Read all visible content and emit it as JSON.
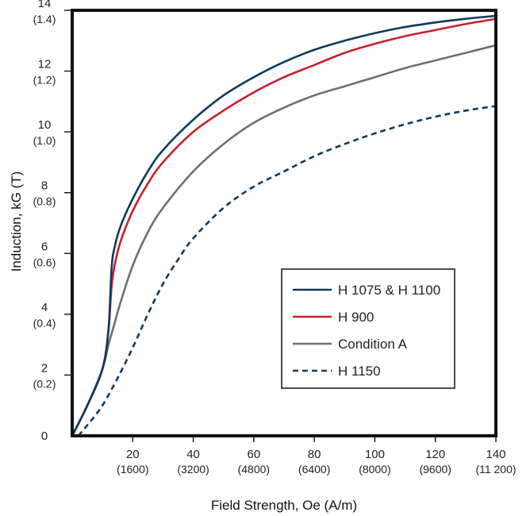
{
  "chart_data": {
    "type": "line",
    "title": "",
    "xlabel": "Field Strength, Oe (A/m)",
    "ylabel": "Induction, kG (T)",
    "xlim": [
      0,
      140
    ],
    "ylim": [
      0,
      14
    ],
    "x_ticks": [
      {
        "value": 20,
        "label": "20",
        "sublabel": "(1600)"
      },
      {
        "value": 40,
        "label": "40",
        "sublabel": "(3200)"
      },
      {
        "value": 60,
        "label": "60",
        "sublabel": "(4800)"
      },
      {
        "value": 80,
        "label": "80",
        "sublabel": "(6400)"
      },
      {
        "value": 100,
        "label": "100",
        "sublabel": "(8000)"
      },
      {
        "value": 120,
        "label": "120",
        "sublabel": "(9600)"
      },
      {
        "value": 140,
        "label": "140",
        "sublabel": "(11 200)"
      }
    ],
    "y_ticks": [
      {
        "value": 0,
        "label": "0",
        "sublabel": ""
      },
      {
        "value": 2,
        "label": "2",
        "sublabel": "(0.2)"
      },
      {
        "value": 4,
        "label": "4",
        "sublabel": "(0.4)"
      },
      {
        "value": 6,
        "label": "6",
        "sublabel": "(0.6)"
      },
      {
        "value": 8,
        "label": "8",
        "sublabel": "(0.8)"
      },
      {
        "value": 10,
        "label": "10",
        "sublabel": "(1.0)"
      },
      {
        "value": 12,
        "label": "12",
        "sublabel": "(1.2)"
      },
      {
        "value": 14,
        "label": "14",
        "sublabel": "(1.4)"
      }
    ],
    "grid": false,
    "legend_position": "bottom-right",
    "series": [
      {
        "name": "H 1075 & H 1100",
        "color": "#0f3a5c",
        "style": "solid",
        "points": [
          [
            0,
            0
          ],
          [
            5,
            1.0
          ],
          [
            10,
            2.2
          ],
          [
            12,
            3.5
          ],
          [
            13,
            5.5
          ],
          [
            14,
            6.2
          ],
          [
            16,
            6.9
          ],
          [
            20,
            7.8
          ],
          [
            25,
            8.7
          ],
          [
            30,
            9.4
          ],
          [
            40,
            10.4
          ],
          [
            50,
            11.2
          ],
          [
            60,
            11.8
          ],
          [
            70,
            12.3
          ],
          [
            80,
            12.7
          ],
          [
            90,
            13.0
          ],
          [
            100,
            13.25
          ],
          [
            110,
            13.45
          ],
          [
            120,
            13.6
          ],
          [
            130,
            13.72
          ],
          [
            140,
            13.82
          ]
        ]
      },
      {
        "name": "H 900",
        "color": "#c8202f",
        "style": "solid",
        "points": [
          [
            0,
            0
          ],
          [
            5,
            1.0
          ],
          [
            10,
            2.2
          ],
          [
            12,
            3.5
          ],
          [
            13,
            4.9
          ],
          [
            14,
            5.6
          ],
          [
            16,
            6.4
          ],
          [
            20,
            7.4
          ],
          [
            25,
            8.3
          ],
          [
            30,
            9.0
          ],
          [
            40,
            10.0
          ],
          [
            50,
            10.7
          ],
          [
            60,
            11.3
          ],
          [
            70,
            11.8
          ],
          [
            80,
            12.2
          ],
          [
            90,
            12.6
          ],
          [
            100,
            12.9
          ],
          [
            110,
            13.15
          ],
          [
            120,
            13.35
          ],
          [
            130,
            13.55
          ],
          [
            140,
            13.72
          ]
        ]
      },
      {
        "name": "Condition A",
        "color": "#6f6f6f",
        "style": "solid",
        "points": [
          [
            0,
            0
          ],
          [
            5,
            1.0
          ],
          [
            10,
            2.2
          ],
          [
            12,
            3.0
          ],
          [
            14,
            3.7
          ],
          [
            16,
            4.4
          ],
          [
            20,
            5.6
          ],
          [
            25,
            6.7
          ],
          [
            30,
            7.5
          ],
          [
            40,
            8.7
          ],
          [
            50,
            9.6
          ],
          [
            60,
            10.3
          ],
          [
            70,
            10.8
          ],
          [
            80,
            11.2
          ],
          [
            90,
            11.5
          ],
          [
            100,
            11.8
          ],
          [
            110,
            12.1
          ],
          [
            120,
            12.35
          ],
          [
            130,
            12.6
          ],
          [
            140,
            12.85
          ]
        ]
      },
      {
        "name": "H 1150",
        "color": "#0f3a5c",
        "style": "dashed",
        "points": [
          [
            2,
            0
          ],
          [
            5,
            0.35
          ],
          [
            10,
            1.0
          ],
          [
            15,
            1.9
          ],
          [
            20,
            2.9
          ],
          [
            25,
            4.0
          ],
          [
            30,
            5.0
          ],
          [
            35,
            5.8
          ],
          [
            40,
            6.5
          ],
          [
            50,
            7.5
          ],
          [
            60,
            8.2
          ],
          [
            70,
            8.7
          ],
          [
            80,
            9.2
          ],
          [
            90,
            9.6
          ],
          [
            100,
            9.95
          ],
          [
            110,
            10.25
          ],
          [
            120,
            10.5
          ],
          [
            130,
            10.7
          ],
          [
            140,
            10.85
          ]
        ]
      }
    ]
  }
}
